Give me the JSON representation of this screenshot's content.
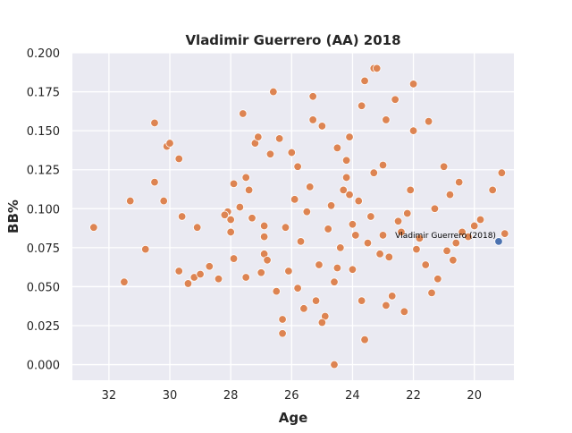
{
  "chart_data": {
    "type": "scatter",
    "title": "Vladimir Guerrero (AA) 2018",
    "xlabel": "Age",
    "ylabel": "BB%",
    "xlim": [
      33.2,
      18.7
    ],
    "ylim": [
      -0.01,
      0.2
    ],
    "x_ticks": [
      32,
      30,
      28,
      26,
      24,
      22,
      20
    ],
    "y_ticks": [
      0.0,
      0.025,
      0.05,
      0.075,
      0.1,
      0.125,
      0.15,
      0.175,
      0.2
    ],
    "x_tick_labels": [
      "32",
      "30",
      "28",
      "26",
      "24",
      "22",
      "20"
    ],
    "y_tick_labels": [
      "0.000",
      "0.025",
      "0.050",
      "0.075",
      "0.100",
      "0.125",
      "0.150",
      "0.175",
      "0.200"
    ],
    "grid": true,
    "background": "#eaeaf2",
    "colors": {
      "population": "#dd8452",
      "highlight": "#4c72b0"
    },
    "highlight": {
      "label": "Vladimir Guerrero (2018)",
      "x": 19.2,
      "y": 0.079
    },
    "series": [
      {
        "x": [
          32.5,
          31.3,
          31.5,
          30.8,
          30.5,
          30.5,
          30.2,
          30.1,
          30.0,
          29.7,
          29.6,
          29.7,
          29.4,
          29.2,
          29.1,
          29.0,
          28.7,
          28.4,
          28.1,
          28.0,
          28.0,
          27.9,
          27.9,
          27.6,
          27.5,
          27.5,
          27.2,
          27.1,
          26.9,
          26.9,
          26.7,
          26.6,
          26.4,
          26.3,
          26.0,
          25.8,
          25.9,
          25.3,
          25.3,
          25.0,
          24.6,
          24.5,
          24.2,
          24.1,
          24.0,
          23.7,
          23.6,
          23.3,
          23.2,
          23.0,
          22.9,
          22.6,
          22.1,
          22.0,
          22.0,
          21.5,
          21.3,
          21.0,
          20.8,
          20.7,
          20.5,
          20.2,
          20.0,
          19.8,
          19.4,
          19.1,
          19.0,
          24.3,
          23.9,
          25.1,
          24.7,
          23.5,
          26.2,
          22.8,
          21.8,
          27.3,
          24.4,
          25.5,
          23.1,
          22.4,
          26.8,
          20.9,
          28.2,
          24.8,
          23.4,
          25.7,
          21.6,
          27.7,
          24.6,
          22.5,
          26.1,
          23.8,
          25.2,
          20.6,
          24.0,
          22.2,
          26.5,
          23.0,
          25.6,
          21.2,
          24.9,
          27.0,
          22.7,
          25.4,
          23.3,
          21.9,
          24.2,
          26.9,
          22.3,
          25.8,
          23.7,
          20.4,
          24.5,
          27.4,
          23.6,
          21.4,
          25.0,
          22.9,
          26.3,
          24.1
        ],
        "y": [
          0.088,
          0.105,
          0.053,
          0.074,
          0.155,
          0.117,
          0.105,
          0.14,
          0.142,
          0.132,
          0.095,
          0.06,
          0.052,
          0.056,
          0.088,
          0.058,
          0.063,
          0.055,
          0.098,
          0.093,
          0.085,
          0.116,
          0.068,
          0.161,
          0.12,
          0.056,
          0.142,
          0.146,
          0.089,
          0.071,
          0.135,
          0.175,
          0.145,
          0.029,
          0.136,
          0.127,
          0.106,
          0.172,
          0.157,
          0.153,
          0.0,
          0.062,
          0.12,
          0.146,
          0.09,
          0.166,
          0.182,
          0.19,
          0.19,
          0.128,
          0.157,
          0.17,
          0.112,
          0.18,
          0.15,
          0.156,
          0.1,
          0.127,
          0.109,
          0.067,
          0.117,
          0.082,
          0.089,
          0.093,
          0.112,
          0.123,
          0.084,
          0.112,
          0.083,
          0.064,
          0.102,
          0.078,
          0.088,
          0.069,
          0.081,
          0.094,
          0.075,
          0.098,
          0.071,
          0.085,
          0.067,
          0.073,
          0.096,
          0.087,
          0.095,
          0.079,
          0.064,
          0.101,
          0.053,
          0.092,
          0.06,
          0.105,
          0.041,
          0.078,
          0.061,
          0.097,
          0.047,
          0.083,
          0.036,
          0.055,
          0.031,
          0.059,
          0.044,
          0.114,
          0.123,
          0.074,
          0.131,
          0.082,
          0.034,
          0.049,
          0.041,
          0.085,
          0.139,
          0.112,
          0.016,
          0.046,
          0.027,
          0.038,
          0.02,
          0.109
        ]
      }
    ]
  }
}
